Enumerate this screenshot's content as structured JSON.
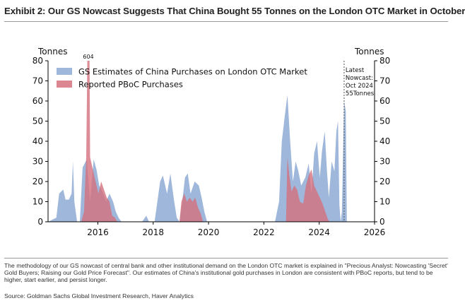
{
  "header": {
    "title": "Exhibit 2: Our GS Nowcast Suggests That China Bought 55 Tonnes on the London OTC Market in October"
  },
  "footer": {
    "note": "The methodology of our GS nowcast of central bank and other institutional demand on the London OTC market is explained in \"Precious Analyst: Nowcasting 'Secret' Gold Buyers; Raising our Gold Price Forecast\". Our estimates of China's institutional gold purchases in London are consistent with PBoC reports, but tend to be higher, start earlier, and persist longer.",
    "source": "Source: Goldman Sachs Global Investment Research, Haver Analytics"
  },
  "colors": {
    "gs": "#8eaad3",
    "pboc": "#d5717d",
    "axis": "#000000",
    "text": "#111111"
  },
  "chart_data": {
    "type": "area",
    "ylabel_left": "Tonnes",
    "ylabel_right": "Tonnes",
    "ylim": [
      0,
      80
    ],
    "xlim": [
      2014.2,
      2026
    ],
    "x_ticks": [
      "2016",
      "2018",
      "2020",
      "2022",
      "2024",
      "2026"
    ],
    "y_ticks": [
      "0",
      "10",
      "20",
      "30",
      "40",
      "50",
      "60",
      "70",
      "80"
    ],
    "legend": [
      "GS Estimates of China Purchases on London OTC Market",
      "Reported PBoC Purchases"
    ],
    "legend_position": "top-left",
    "annotations": {
      "clipped_value": "604",
      "latest_nowcast": [
        "Latest",
        "Nowcast:",
        "Oct 2024",
        "55Tonnes"
      ]
    },
    "series": [
      {
        "name": "GS Estimates of China Purchases on London OTC Market",
        "points": [
          [
            2014.2,
            0
          ],
          [
            2014.5,
            2
          ],
          [
            2014.6,
            14
          ],
          [
            2014.75,
            16
          ],
          [
            2014.83,
            11
          ],
          [
            2014.95,
            11
          ],
          [
            2015.05,
            14
          ],
          [
            2015.1,
            30
          ],
          [
            2015.15,
            10
          ],
          [
            2015.25,
            0
          ],
          [
            2015.35,
            0
          ],
          [
            2015.45,
            27
          ],
          [
            2015.6,
            31
          ],
          [
            2015.72,
            10
          ],
          [
            2015.85,
            31
          ],
          [
            2015.95,
            26
          ],
          [
            2016.05,
            18
          ],
          [
            2016.2,
            14
          ],
          [
            2016.3,
            10
          ],
          [
            2016.42,
            14
          ],
          [
            2016.55,
            10
          ],
          [
            2016.65,
            5
          ],
          [
            2016.75,
            2
          ],
          [
            2016.85,
            0
          ],
          [
            2017.6,
            0
          ],
          [
            2017.75,
            3
          ],
          [
            2017.85,
            0
          ],
          [
            2018.05,
            0
          ],
          [
            2018.15,
            10
          ],
          [
            2018.25,
            20
          ],
          [
            2018.35,
            23
          ],
          [
            2018.5,
            14
          ],
          [
            2018.62,
            24
          ],
          [
            2018.75,
            11
          ],
          [
            2018.85,
            2
          ],
          [
            2018.95,
            0
          ],
          [
            2019.05,
            10
          ],
          [
            2019.15,
            22
          ],
          [
            2019.25,
            24
          ],
          [
            2019.35,
            14
          ],
          [
            2019.5,
            20
          ],
          [
            2019.65,
            18
          ],
          [
            2019.75,
            12
          ],
          [
            2019.85,
            5
          ],
          [
            2019.95,
            0
          ],
          [
            2022.4,
            0
          ],
          [
            2022.55,
            10
          ],
          [
            2022.65,
            40
          ],
          [
            2022.75,
            52
          ],
          [
            2022.85,
            63
          ],
          [
            2022.95,
            40
          ],
          [
            2023.05,
            20
          ],
          [
            2023.15,
            30
          ],
          [
            2023.25,
            25
          ],
          [
            2023.35,
            18
          ],
          [
            2023.5,
            22
          ],
          [
            2023.62,
            29
          ],
          [
            2023.72,
            14
          ],
          [
            2023.82,
            34
          ],
          [
            2023.92,
            40
          ],
          [
            2024.02,
            22
          ],
          [
            2024.1,
            35
          ],
          [
            2024.2,
            45
          ],
          [
            2024.28,
            25
          ],
          [
            2024.35,
            12
          ],
          [
            2024.45,
            30
          ],
          [
            2024.55,
            25
          ],
          [
            2024.62,
            45
          ],
          [
            2024.68,
            50
          ],
          [
            2024.73,
            8
          ],
          [
            2024.78,
            0
          ],
          [
            2024.82,
            5
          ],
          [
            2024.9,
            60
          ],
          [
            2024.96,
            55
          ],
          [
            2025.0,
            0
          ]
        ]
      },
      {
        "name": "Reported PBoC Purchases",
        "points": [
          [
            2015.4,
            0
          ],
          [
            2015.5,
            5
          ],
          [
            2015.58,
            32
          ],
          [
            2015.62,
            80
          ],
          [
            2015.7,
            80
          ],
          [
            2015.72,
            32
          ],
          [
            2015.82,
            26
          ],
          [
            2015.92,
            20
          ],
          [
            2016.02,
            14
          ],
          [
            2016.12,
            20
          ],
          [
            2016.22,
            16
          ],
          [
            2016.32,
            12
          ],
          [
            2016.42,
            10
          ],
          [
            2016.52,
            3
          ],
          [
            2016.62,
            2
          ],
          [
            2016.7,
            0
          ],
          [
            2018.95,
            0
          ],
          [
            2019.02,
            10
          ],
          [
            2019.12,
            14
          ],
          [
            2019.22,
            10
          ],
          [
            2019.32,
            12
          ],
          [
            2019.42,
            10
          ],
          [
            2019.52,
            12
          ],
          [
            2019.62,
            7
          ],
          [
            2019.72,
            4
          ],
          [
            2019.8,
            0
          ],
          [
            2022.8,
            0
          ],
          [
            2022.85,
            32
          ],
          [
            2022.92,
            23
          ],
          [
            2023.0,
            15
          ],
          [
            2023.1,
            18
          ],
          [
            2023.2,
            16
          ],
          [
            2023.3,
            10
          ],
          [
            2023.42,
            9
          ],
          [
            2023.52,
            18
          ],
          [
            2023.62,
            23
          ],
          [
            2023.72,
            26
          ],
          [
            2023.82,
            18
          ],
          [
            2023.92,
            15
          ],
          [
            2024.02,
            12
          ],
          [
            2024.12,
            9
          ],
          [
            2024.22,
            5
          ],
          [
            2024.32,
            1
          ],
          [
            2024.38,
            0
          ]
        ]
      }
    ]
  }
}
